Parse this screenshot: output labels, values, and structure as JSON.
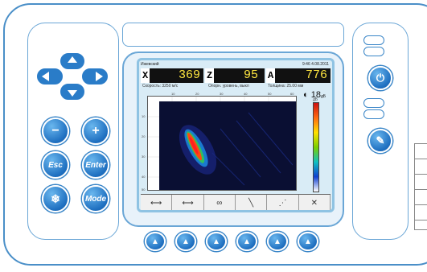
{
  "keypad": {
    "minus_label": "−",
    "plus_label": "+",
    "esc_label": "Esc",
    "enter_label": "Enter",
    "mode_label": "Mode"
  },
  "screen": {
    "header_left": "Ижевский",
    "header_right": "9:46   4.08.2011",
    "readouts": [
      {
        "axis": "X",
        "value": "369"
      },
      {
        "axis": "Z",
        "value": "95"
      },
      {
        "axis": "A",
        "value": "776"
      }
    ],
    "sub_left": "Скорость: 3250 м/с",
    "sub_mid": "Опорн. уровень, выкл",
    "sub_right": "Толщина: 25.00 мм",
    "gain_value": "18",
    "gain_unit": "дБ",
    "x_ticks": [
      "10",
      "20",
      "30",
      "40",
      "50",
      "60"
    ],
    "y_ticks": [
      "10",
      "20",
      "30",
      "40",
      "50"
    ],
    "scale_top": "дБ"
  },
  "colors": {
    "accent": "#1e6fc0",
    "outline": "#4a8fc8",
    "readout_text": "#ffe640"
  }
}
